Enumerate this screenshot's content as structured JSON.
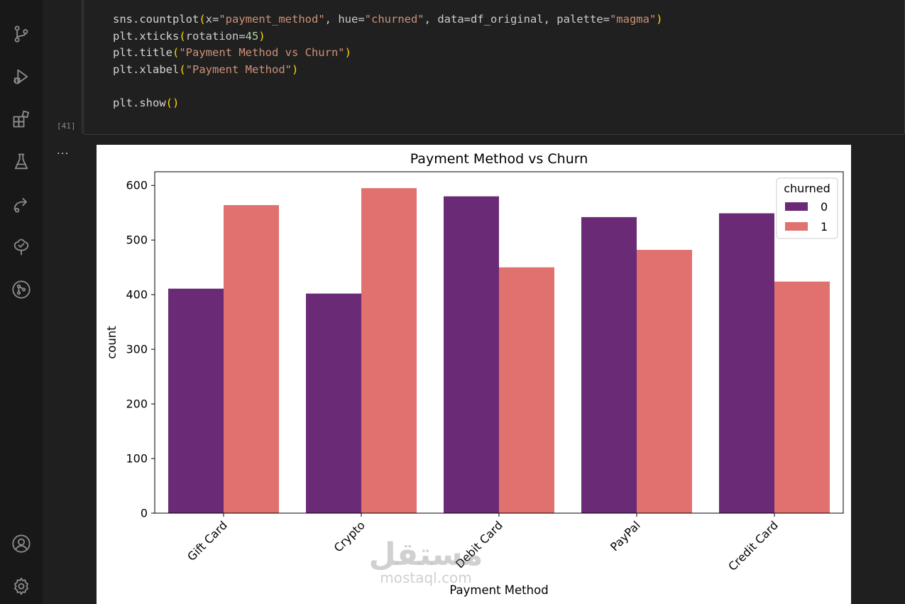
{
  "activity_bar": {
    "icons": [
      "source-control-icon",
      "run-debug-icon",
      "extensions-icon",
      "testing-icon",
      "remote-share-icon",
      "tree-check-icon",
      "git-graph-icon",
      "account-icon",
      "gear-icon"
    ]
  },
  "cell": {
    "exec_count": "[41]",
    "output_marker": "...",
    "code_lines": [
      "sns.countplot(x=\"payment_method\", hue=\"churned\", data=df_original, palette=\"magma\")",
      "plt.xticks(rotation=45)",
      "plt.title(\"Payment Method vs Churn\")",
      "plt.xlabel(\"Payment Method\")",
      "",
      "plt.show()"
    ]
  },
  "watermark": {
    "main": "مستقل",
    "sub": "mostaql.com"
  },
  "chart_data": {
    "type": "bar",
    "title": "Payment Method vs Churn",
    "xlabel": "Payment Method",
    "ylabel": "count",
    "categories": [
      "Gift Card",
      "Crypto",
      "Debit Card",
      "PayPal",
      "Credit Card"
    ],
    "series": [
      {
        "name": "0",
        "values": [
          411,
          402,
          580,
          542,
          549
        ],
        "color": "#6a2a76"
      },
      {
        "name": "1",
        "values": [
          564,
          595,
          450,
          482,
          424
        ],
        "color": "#e0716e"
      }
    ],
    "yticks": [
      0,
      100,
      200,
      300,
      400,
      500,
      600
    ],
    "ylim": [
      0,
      625
    ],
    "legend": {
      "title": "churned",
      "placement": "top-right"
    },
    "xtick_rotation": 45,
    "grid": false
  }
}
